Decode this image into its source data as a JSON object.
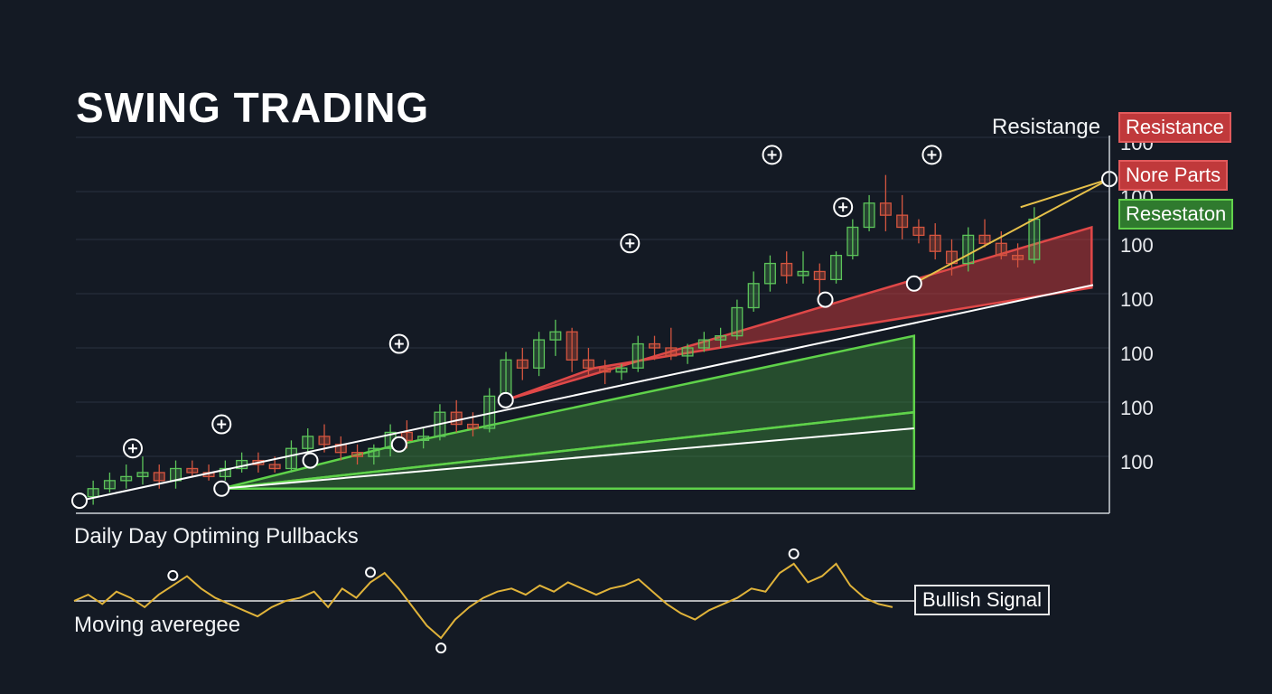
{
  "header": {
    "title": "SWING TRADING"
  },
  "labels": {
    "resistance_annotation": "Resistange",
    "oscillator_title": "Daily Day Optiming Pullbacks",
    "oscillator_subtitle": "Moving averegee",
    "signal_box": "Bullish Signal"
  },
  "legend": {
    "items": [
      {
        "label": "Resistance",
        "color": "#c0393b"
      },
      {
        "label": "Nore Parts",
        "color": "#c0393b"
      },
      {
        "label": "Resestaton",
        "color": "#2f7a2e"
      }
    ]
  },
  "colors": {
    "background": "#141a24",
    "bullish": "#5cc45a",
    "bearish": "#d4553f",
    "trendline": "#ffffff",
    "oscillator": "#e0b33a",
    "arrow": "#e6c04a"
  },
  "chart_data": [
    {
      "type": "candlestick",
      "y_tick_labels": [
        "100",
        "100",
        "100",
        "100",
        "100",
        "100",
        "100",
        "100"
      ],
      "ylim": [
        0,
        100
      ],
      "xlim": [
        0,
        58
      ],
      "grid": true,
      "candles": [
        {
          "o": 3,
          "h": 7,
          "l": 1,
          "c": 5
        },
        {
          "o": 5,
          "h": 9,
          "l": 4,
          "c": 7
        },
        {
          "o": 7,
          "h": 11,
          "l": 5,
          "c": 8
        },
        {
          "o": 8,
          "h": 13,
          "l": 6,
          "c": 9
        },
        {
          "o": 9,
          "h": 11,
          "l": 5,
          "c": 7
        },
        {
          "o": 7,
          "h": 12,
          "l": 5,
          "c": 10
        },
        {
          "o": 10,
          "h": 12,
          "l": 8,
          "c": 9
        },
        {
          "o": 9,
          "h": 11,
          "l": 7,
          "c": 8
        },
        {
          "o": 8,
          "h": 12,
          "l": 7,
          "c": 10
        },
        {
          "o": 10,
          "h": 14,
          "l": 9,
          "c": 12
        },
        {
          "o": 12,
          "h": 14,
          "l": 9,
          "c": 11
        },
        {
          "o": 11,
          "h": 13,
          "l": 9,
          "c": 10
        },
        {
          "o": 10,
          "h": 17,
          "l": 9,
          "c": 15
        },
        {
          "o": 15,
          "h": 20,
          "l": 13,
          "c": 18
        },
        {
          "o": 18,
          "h": 21,
          "l": 14,
          "c": 16
        },
        {
          "o": 16,
          "h": 18,
          "l": 12,
          "c": 14
        },
        {
          "o": 14,
          "h": 16,
          "l": 11,
          "c": 13
        },
        {
          "o": 13,
          "h": 16,
          "l": 11,
          "c": 15
        },
        {
          "o": 15,
          "h": 21,
          "l": 13,
          "c": 19
        },
        {
          "o": 19,
          "h": 22,
          "l": 15,
          "c": 17
        },
        {
          "o": 17,
          "h": 20,
          "l": 15,
          "c": 18
        },
        {
          "o": 18,
          "h": 26,
          "l": 17,
          "c": 24
        },
        {
          "o": 24,
          "h": 27,
          "l": 19,
          "c": 21
        },
        {
          "o": 21,
          "h": 24,
          "l": 18,
          "c": 20
        },
        {
          "o": 20,
          "h": 30,
          "l": 19,
          "c": 28
        },
        {
          "o": 28,
          "h": 39,
          "l": 27,
          "c": 37
        },
        {
          "o": 37,
          "h": 40,
          "l": 32,
          "c": 35
        },
        {
          "o": 35,
          "h": 44,
          "l": 33,
          "c": 42
        },
        {
          "o": 42,
          "h": 47,
          "l": 38,
          "c": 44
        },
        {
          "o": 44,
          "h": 45,
          "l": 34,
          "c": 37
        },
        {
          "o": 37,
          "h": 40,
          "l": 33,
          "c": 35
        },
        {
          "o": 35,
          "h": 37,
          "l": 31,
          "c": 34
        },
        {
          "o": 34,
          "h": 36,
          "l": 32,
          "c": 35
        },
        {
          "o": 35,
          "h": 43,
          "l": 34,
          "c": 41
        },
        {
          "o": 41,
          "h": 43,
          "l": 37,
          "c": 40
        },
        {
          "o": 40,
          "h": 45,
          "l": 37,
          "c": 38
        },
        {
          "o": 38,
          "h": 41,
          "l": 36,
          "c": 40
        },
        {
          "o": 40,
          "h": 44,
          "l": 39,
          "c": 42
        },
        {
          "o": 42,
          "h": 45,
          "l": 40,
          "c": 43
        },
        {
          "o": 43,
          "h": 52,
          "l": 42,
          "c": 50
        },
        {
          "o": 50,
          "h": 59,
          "l": 49,
          "c": 56
        },
        {
          "o": 56,
          "h": 63,
          "l": 54,
          "c": 61
        },
        {
          "o": 61,
          "h": 64,
          "l": 56,
          "c": 58
        },
        {
          "o": 58,
          "h": 64,
          "l": 56,
          "c": 59
        },
        {
          "o": 59,
          "h": 61,
          "l": 53,
          "c": 57
        },
        {
          "o": 57,
          "h": 64,
          "l": 56,
          "c": 63
        },
        {
          "o": 63,
          "h": 72,
          "l": 62,
          "c": 70
        },
        {
          "o": 70,
          "h": 78,
          "l": 69,
          "c": 76
        },
        {
          "o": 76,
          "h": 83,
          "l": 69,
          "c": 73
        },
        {
          "o": 73,
          "h": 78,
          "l": 67,
          "c": 70
        },
        {
          "o": 70,
          "h": 72,
          "l": 66,
          "c": 68
        },
        {
          "o": 68,
          "h": 71,
          "l": 62,
          "c": 64
        },
        {
          "o": 64,
          "h": 67,
          "l": 58,
          "c": 61
        },
        {
          "o": 61,
          "h": 70,
          "l": 59,
          "c": 68
        },
        {
          "o": 68,
          "h": 72,
          "l": 65,
          "c": 66
        },
        {
          "o": 66,
          "h": 69,
          "l": 62,
          "c": 63
        },
        {
          "o": 63,
          "h": 66,
          "l": 60,
          "c": 62
        },
        {
          "o": 62,
          "h": 75,
          "l": 61,
          "c": 72
        }
      ],
      "trendline_upper": [
        [
          0,
          2
        ],
        [
          58,
          57
        ]
      ],
      "trendline_lower": [
        [
          8,
          5
        ],
        [
          47,
          20
        ]
      ],
      "swing_lows": [
        [
          0,
          2
        ],
        [
          8,
          5
        ],
        [
          13,
          12
        ],
        [
          18,
          16
        ],
        [
          24,
          27
        ],
        [
          42,
          52
        ],
        [
          47,
          56
        ]
      ],
      "swing_highs": [
        [
          3,
          15
        ],
        [
          8,
          21
        ],
        [
          18,
          41
        ],
        [
          31,
          66
        ],
        [
          39,
          88
        ],
        [
          43,
          75
        ],
        [
          48,
          88
        ]
      ],
      "resistance_point": [
        58,
        82
      ],
      "bands": [
        {
          "color": "red",
          "points": [
            [
              24,
              27
            ],
            [
              57,
              70
            ],
            [
              57,
              55
            ],
            [
              29,
              35
            ]
          ]
        },
        {
          "color": "green",
          "points": [
            [
              8,
              5
            ],
            [
              18,
              16
            ],
            [
              47,
              43
            ],
            [
              47,
              24
            ]
          ]
        },
        {
          "color": "green",
          "points": [
            [
              8,
              5
            ],
            [
              47,
              24
            ],
            [
              47,
              5
            ]
          ]
        }
      ]
    },
    {
      "type": "line",
      "title": "Daily Day Optiming Pullbacks",
      "series": [
        {
          "values": [
            0,
            2,
            -1,
            3,
            1,
            -2,
            2,
            5,
            8,
            4,
            1,
            -1,
            -3,
            -5,
            -2,
            0,
            1,
            3,
            -2,
            4,
            1,
            6,
            9,
            4,
            -2,
            -8,
            -12,
            -6,
            -2,
            1,
            3,
            4,
            2,
            5,
            3,
            6,
            4,
            2,
            4,
            5,
            7,
            3,
            -1,
            -4,
            -6,
            -3,
            -1,
            1,
            4,
            3,
            9,
            12,
            6,
            8,
            12,
            5,
            1,
            -1,
            -2
          ]
        }
      ],
      "baseline": 0,
      "ylim": [
        -14,
        14
      ],
      "annotations": [
        "Bullish Signal"
      ]
    }
  ]
}
